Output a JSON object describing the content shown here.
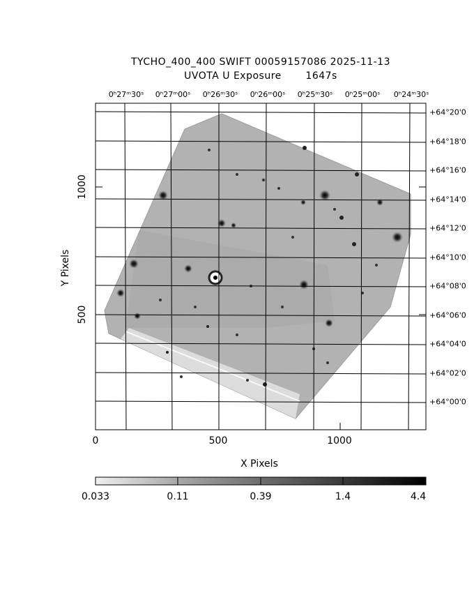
{
  "header": {
    "line1": "TYCHO_400_400 SWIFT 00059157086 2025-11-13",
    "line2": "UVOTA U Exposure       1647s"
  },
  "axes": {
    "x_title": "X Pixels",
    "y_title": "Y Pixels",
    "x_ticks": [
      "0",
      "500",
      "1000"
    ],
    "y_ticks": [
      "500",
      "1000"
    ],
    "ra_ticks": [
      "0ʰ27ᵐ30ˢ",
      "0ʰ27ᵐ00ˢ",
      "0ʰ26ᵐ30ˢ",
      "0ʰ26ᵐ00ˢ",
      "0ʰ25ᵐ30ˢ",
      "0ʰ25ᵐ00ˢ",
      "0ʰ24ᵐ30ˢ"
    ],
    "dec_ticks": [
      "+64°20'0",
      "+64°18'0",
      "+64°16'0",
      "+64°14'0",
      "+64°12'0",
      "+64°10'0",
      "+64°08'0",
      "+64°06'0",
      "+64°04'0",
      "+64°02'0",
      "+64°00'0"
    ]
  },
  "colorbar": {
    "labels": [
      "0.033",
      "0.11",
      "0.39",
      "1.4",
      "4.4"
    ],
    "min_color": "#ffffff",
    "max_color": "#000000"
  },
  "image": {
    "background": "#b0b0b0",
    "frame_color": "#000000"
  }
}
